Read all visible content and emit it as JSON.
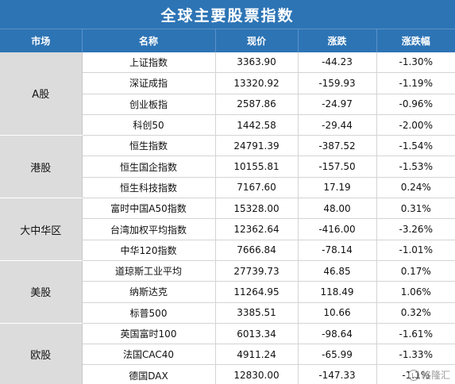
{
  "title": "全球主要股票指数",
  "columns": [
    "市场",
    "名称",
    "现价",
    "涨跌",
    "涨跌幅"
  ],
  "groups": [
    {
      "market": "A股",
      "rows": [
        {
          "name": "上证指数",
          "price": "3363.90",
          "change": "-44.23",
          "pct": "-1.30%"
        },
        {
          "name": "深证成指",
          "price": "13320.92",
          "change": "-159.93",
          "pct": "-1.19%"
        },
        {
          "name": "创业板指",
          "price": "2587.86",
          "change": "-24.97",
          "pct": "-0.96%"
        },
        {
          "name": "科创50",
          "price": "1442.58",
          "change": "-29.44",
          "pct": "-2.00%"
        }
      ]
    },
    {
      "market": "港股",
      "rows": [
        {
          "name": "恒生指数",
          "price": "24791.39",
          "change": "-387.52",
          "pct": "-1.54%"
        },
        {
          "name": "恒生国企指数",
          "price": "10155.81",
          "change": "-157.50",
          "pct": "-1.53%"
        },
        {
          "name": "恒生科技指数",
          "price": "7167.60",
          "change": "17.19",
          "pct": "0.24%"
        }
      ]
    },
    {
      "market": "大中华区",
      "rows": [
        {
          "name": "富时中国A50指数",
          "price": "15328.00",
          "change": "48.00",
          "pct": "0.31%"
        },
        {
          "name": "台湾加权平均指数",
          "price": "12362.64",
          "change": "-416.00",
          "pct": "-3.26%"
        },
        {
          "name": "中华120指数",
          "price": "7666.84",
          "change": "-78.14",
          "pct": "-1.01%"
        }
      ]
    },
    {
      "market": "美股",
      "rows": [
        {
          "name": "道琼斯工业平均",
          "price": "27739.73",
          "change": "46.85",
          "pct": "0.17%"
        },
        {
          "name": "纳斯达克",
          "price": "11264.95",
          "change": "118.49",
          "pct": "1.06%"
        },
        {
          "name": "标普500",
          "price": "3385.51",
          "change": "10.66",
          "pct": "0.32%"
        }
      ]
    },
    {
      "market": "欧股",
      "rows": [
        {
          "name": "英国富时100",
          "price": "6013.34",
          "change": "-98.64",
          "pct": "-1.61%"
        },
        {
          "name": "法国CAC40",
          "price": "4911.24",
          "change": "-65.99",
          "pct": "-1.33%"
        },
        {
          "name": "德国DAX",
          "price": "12830.00",
          "change": "-147.33",
          "pct": "-1.1%"
        }
      ]
    }
  ],
  "watermark": {
    "icon": "gelonghui-logo-icon",
    "text": "格隆汇"
  },
  "colors": {
    "header_bg": "#2d74b5",
    "market_bg": "#dcdcdc"
  }
}
